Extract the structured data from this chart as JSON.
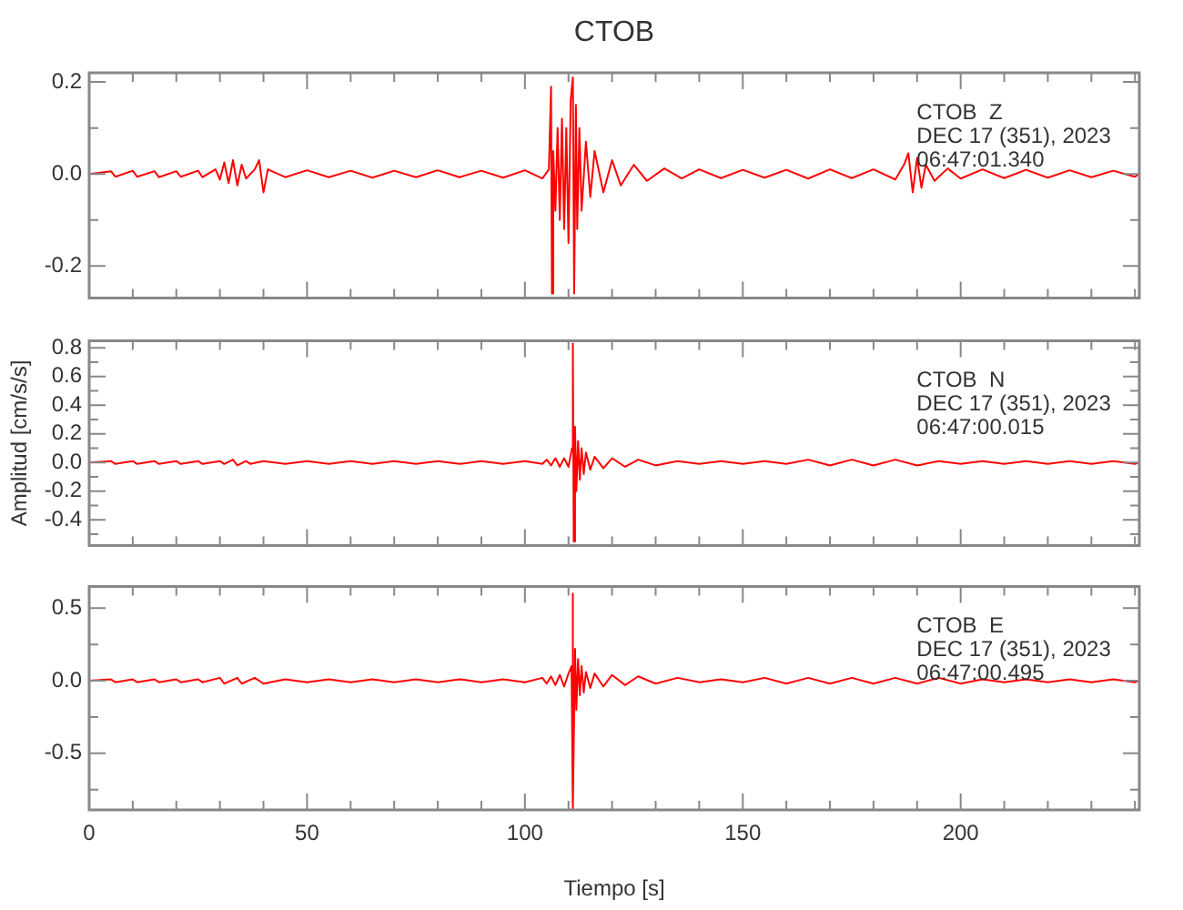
{
  "chart_data": [
    {
      "type": "line",
      "title": "CTOB",
      "annotations": [
        "CTOB  Z",
        "DEC 17 (351), 2023",
        "06:47:01.340"
      ],
      "tick_labels": "y",
      "xlim": [
        0,
        241
      ],
      "xticks": [
        0,
        {
          "value": 10,
          "label": null
        },
        {
          "value": 20,
          "label": null
        },
        {
          "value": 30,
          "label": null
        },
        {
          "value": 40,
          "label": null
        },
        50,
        {
          "value": 60,
          "label": null
        },
        {
          "value": 70,
          "label": null
        },
        {
          "value": 80,
          "label": null
        },
        {
          "value": 90,
          "label": null
        },
        100,
        {
          "value": 110,
          "label": null
        },
        {
          "value": 120,
          "label": null
        },
        {
          "value": 130,
          "label": null
        },
        {
          "value": 140,
          "label": null
        },
        150,
        {
          "value": 160,
          "label": null
        },
        {
          "value": 170,
          "label": null
        },
        {
          "value": 180,
          "label": null
        },
        {
          "value": 190,
          "label": null
        },
        200,
        {
          "value": 210,
          "label": null
        },
        {
          "value": 220,
          "label": null
        },
        {
          "value": 230,
          "label": null
        },
        {
          "value": 240,
          "label": null
        }
      ],
      "ylim": [
        -0.27,
        0.22
      ],
      "yticks": [
        -0.2,
        {
          "value": -0.1,
          "label": null
        },
        {
          "value": 0,
          "label": "0.0"
        },
        {
          "value": 0.1,
          "label": null
        },
        0.2
      ],
      "x": [
        0,
        5,
        6,
        10,
        11,
        15,
        16,
        20,
        21,
        25,
        26,
        29,
        30,
        31,
        32,
        33,
        34,
        35,
        36,
        38,
        39,
        40,
        41,
        45,
        50,
        55,
        60,
        65,
        70,
        75,
        80,
        85,
        90,
        95,
        100,
        104,
        105.5,
        106,
        106.2,
        106.5,
        107,
        107.5,
        108,
        108.5,
        109,
        109.5,
        110,
        110.5,
        111,
        111.3,
        111.7,
        112,
        112.5,
        113,
        114,
        115,
        116,
        118,
        120,
        122,
        125,
        128,
        132,
        136,
        140,
        145,
        150,
        155,
        160,
        165,
        170,
        175,
        180,
        185,
        187,
        188,
        189,
        190,
        191,
        192,
        194,
        197,
        200,
        205,
        210,
        215,
        220,
        225,
        230,
        235,
        240,
        241
      ],
      "series": [
        {
          "color": "#ff0000",
          "values": [
            0,
            0.006,
            -0.006,
            0.007,
            -0.006,
            0.006,
            -0.007,
            0.006,
            -0.006,
            0.007,
            -0.007,
            0.01,
            -0.012,
            0.025,
            -0.02,
            0.03,
            -0.025,
            0.02,
            -0.01,
            0.01,
            0.03,
            -0.04,
            0.01,
            -0.007,
            0.008,
            -0.007,
            0.007,
            -0.008,
            0.007,
            -0.007,
            0.008,
            -0.007,
            0.007,
            -0.008,
            0.008,
            -0.01,
            0.01,
            0.19,
            -0.26,
            0.05,
            -0.08,
            0.1,
            -0.1,
            0.12,
            -0.12,
            0.1,
            -0.15,
            0.16,
            0.21,
            -0.26,
            0.15,
            -0.12,
            0.1,
            -0.08,
            0.07,
            -0.05,
            0.05,
            -0.04,
            0.03,
            -0.025,
            0.02,
            -0.015,
            0.012,
            -0.01,
            0.01,
            -0.009,
            0.009,
            -0.008,
            0.009,
            -0.01,
            0.01,
            -0.009,
            0.01,
            -0.012,
            0.02,
            0.045,
            -0.04,
            0.035,
            -0.03,
            0.02,
            -0.015,
            0.012,
            -0.01,
            0.01,
            -0.009,
            0.009,
            -0.008,
            0.008,
            -0.007,
            0.007,
            -0.006,
            0
          ]
        }
      ]
    },
    {
      "type": "line",
      "ylabel": "Amplitud [cm/s/s]",
      "annotations": [
        "CTOB  N",
        "DEC 17 (351), 2023",
        "06:47:00.015"
      ],
      "tick_labels": "y",
      "xlim": [
        0,
        241
      ],
      "xticks": [
        0,
        {
          "value": 10,
          "label": null
        },
        {
          "value": 20,
          "label": null
        },
        {
          "value": 30,
          "label": null
        },
        {
          "value": 40,
          "label": null
        },
        50,
        {
          "value": 60,
          "label": null
        },
        {
          "value": 70,
          "label": null
        },
        {
          "value": 80,
          "label": null
        },
        {
          "value": 90,
          "label": null
        },
        100,
        {
          "value": 110,
          "label": null
        },
        {
          "value": 120,
          "label": null
        },
        {
          "value": 130,
          "label": null
        },
        {
          "value": 140,
          "label": null
        },
        150,
        {
          "value": 160,
          "label": null
        },
        {
          "value": 170,
          "label": null
        },
        {
          "value": 180,
          "label": null
        },
        {
          "value": 190,
          "label": null
        },
        200,
        {
          "value": 210,
          "label": null
        },
        {
          "value": 220,
          "label": null
        },
        {
          "value": 230,
          "label": null
        },
        {
          "value": 240,
          "label": null
        }
      ],
      "ylim": [
        -0.58,
        0.85
      ],
      "yticks": [
        {
          "value": -0.5,
          "label": null
        },
        -0.4,
        {
          "value": -0.3,
          "label": null
        },
        -0.2,
        {
          "value": -0.1,
          "label": null
        },
        {
          "value": 0,
          "label": "0.0"
        },
        {
          "value": 0.1,
          "label": null
        },
        0.2,
        {
          "value": 0.3,
          "label": null
        },
        0.4,
        {
          "value": 0.5,
          "label": null
        },
        0.6,
        {
          "value": 0.7,
          "label": null
        },
        0.8
      ],
      "x": [
        0,
        5,
        6,
        10,
        11,
        15,
        16,
        20,
        21,
        25,
        26,
        30,
        31,
        33,
        34,
        36,
        37,
        40,
        45,
        50,
        55,
        60,
        65,
        70,
        75,
        80,
        85,
        90,
        95,
        100,
        104,
        105,
        106,
        107,
        108,
        109,
        110,
        110.8,
        111,
        111.2,
        111.5,
        111.8,
        112.2,
        112.6,
        113,
        113.5,
        114,
        115,
        116,
        118,
        120,
        123,
        126,
        130,
        135,
        140,
        145,
        150,
        155,
        160,
        165,
        170,
        175,
        180,
        185,
        190,
        195,
        200,
        205,
        210,
        215,
        220,
        225,
        230,
        235,
        240,
        241
      ],
      "series": [
        {
          "color": "#ff0000",
          "values": [
            0,
            0.01,
            -0.01,
            0.01,
            -0.01,
            0.01,
            -0.01,
            0.01,
            -0.01,
            0.01,
            -0.01,
            0.01,
            -0.01,
            0.02,
            -0.02,
            0.01,
            -0.01,
            0.01,
            -0.01,
            0.01,
            -0.01,
            0.01,
            -0.01,
            0.01,
            -0.01,
            0.01,
            -0.01,
            0.01,
            -0.01,
            0.01,
            -0.01,
            0.02,
            -0.02,
            0.03,
            -0.03,
            0.03,
            -0.03,
            0.1,
            0.83,
            -0.55,
            0.25,
            -0.2,
            0.15,
            -0.12,
            0.1,
            -0.08,
            0.07,
            -0.05,
            0.04,
            -0.04,
            0.03,
            -0.03,
            0.02,
            -0.02,
            0.01,
            -0.01,
            0.01,
            -0.01,
            0.01,
            -0.01,
            0.02,
            -0.02,
            0.02,
            -0.02,
            0.02,
            -0.02,
            0.01,
            -0.01,
            0.01,
            -0.01,
            0.01,
            -0.01,
            0.01,
            -0.01,
            0.01,
            -0.01,
            0
          ]
        }
      ]
    },
    {
      "type": "line",
      "xlabel": "Tiempo [s]",
      "annotations": [
        "CTOB  E",
        "DEC 17 (351), 2023",
        "06:47:00.495"
      ],
      "xlim": [
        0,
        241
      ],
      "xticks": [
        0,
        {
          "value": 10,
          "label": null
        },
        {
          "value": 20,
          "label": null
        },
        {
          "value": 30,
          "label": null
        },
        {
          "value": 40,
          "label": null
        },
        50,
        {
          "value": 60,
          "label": null
        },
        {
          "value": 70,
          "label": null
        },
        {
          "value": 80,
          "label": null
        },
        {
          "value": 90,
          "label": null
        },
        100,
        {
          "value": 110,
          "label": null
        },
        {
          "value": 120,
          "label": null
        },
        {
          "value": 130,
          "label": null
        },
        {
          "value": 140,
          "label": null
        },
        150,
        {
          "value": 160,
          "label": null
        },
        {
          "value": 170,
          "label": null
        },
        {
          "value": 180,
          "label": null
        },
        {
          "value": 190,
          "label": null
        },
        200,
        {
          "value": 210,
          "label": null
        },
        {
          "value": 220,
          "label": null
        },
        {
          "value": 230,
          "label": null
        },
        {
          "value": 240,
          "label": null
        }
      ],
      "ylim": [
        -0.89,
        0.65
      ],
      "yticks": [
        {
          "value": -0.75,
          "label": null
        },
        -0.5,
        {
          "value": -0.25,
          "label": null
        },
        {
          "value": 0,
          "label": "0.0"
        },
        {
          "value": 0.25,
          "label": null
        },
        0.5
      ],
      "x": [
        0,
        5,
        6,
        10,
        11,
        15,
        16,
        20,
        21,
        25,
        26,
        30,
        31,
        34,
        35,
        38,
        40,
        45,
        50,
        55,
        60,
        65,
        70,
        75,
        80,
        85,
        90,
        95,
        100,
        104,
        105,
        106,
        107,
        108,
        109,
        110,
        110.7,
        110.9,
        111.1,
        111.5,
        111.8,
        112.2,
        112.6,
        113,
        113.5,
        114,
        115,
        116,
        118,
        120,
        123,
        126,
        130,
        135,
        140,
        145,
        150,
        155,
        160,
        165,
        170,
        175,
        180,
        185,
        190,
        195,
        200,
        205,
        210,
        215,
        220,
        225,
        230,
        235,
        240,
        241
      ],
      "series": [
        {
          "color": "#ff0000",
          "values": [
            0,
            0.01,
            -0.01,
            0.01,
            -0.01,
            0.01,
            -0.01,
            0.01,
            -0.01,
            0.01,
            -0.01,
            0.02,
            -0.02,
            0.02,
            -0.02,
            0.02,
            -0.02,
            0.01,
            -0.01,
            0.01,
            -0.01,
            0.01,
            -0.01,
            0.01,
            -0.01,
            0.01,
            -0.01,
            0.01,
            -0.01,
            0.02,
            -0.02,
            0.03,
            -0.03,
            0.04,
            -0.04,
            0.05,
            0.1,
            0.6,
            -0.88,
            0.22,
            -0.2,
            0.15,
            -0.1,
            0.1,
            -0.08,
            0.06,
            -0.05,
            0.05,
            -0.04,
            0.04,
            -0.03,
            0.03,
            -0.02,
            0.02,
            -0.01,
            0.01,
            -0.01,
            0.02,
            -0.02,
            0.02,
            -0.02,
            0.02,
            -0.02,
            0.02,
            -0.02,
            0.02,
            -0.02,
            0.01,
            -0.01,
            0.01,
            -0.01,
            0.01,
            -0.01,
            0.01,
            -0.01,
            0
          ]
        }
      ]
    }
  ]
}
